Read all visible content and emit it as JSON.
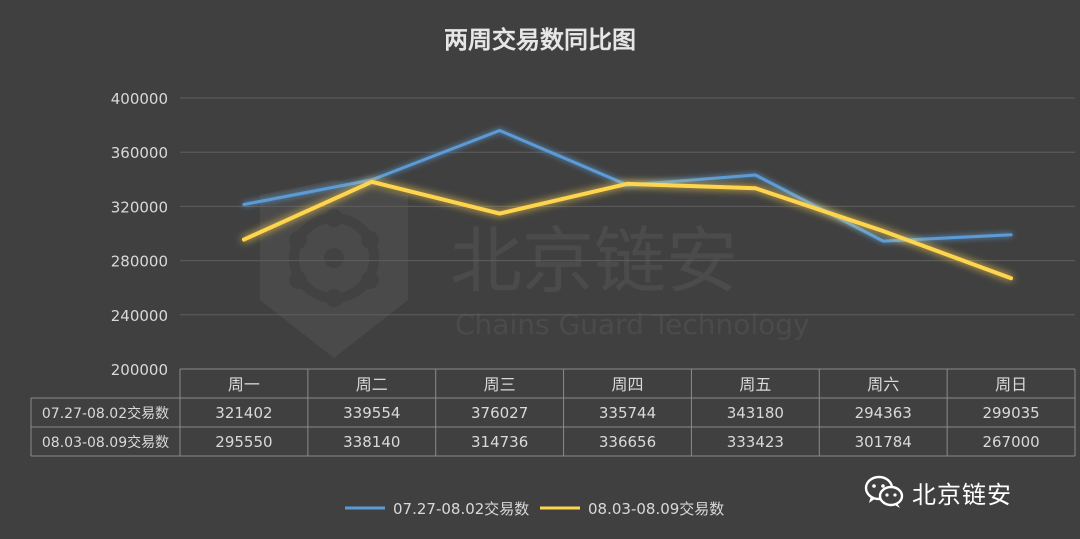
{
  "chart_data": {
    "type": "line",
    "title": "两周交易数同比图",
    "categories": [
      "周一",
      "周二",
      "周三",
      "周四",
      "周五",
      "周六",
      "周日"
    ],
    "ylim": [
      200000,
      400000
    ],
    "yticks": [
      "400000",
      "360000",
      "320000",
      "280000",
      "240000",
      "200000"
    ],
    "grid": true,
    "legend_position": "bottom",
    "series": [
      {
        "name": "07.27-08.02交易数",
        "color": "#5b9bd5",
        "values": [
          321402,
          339554,
          376027,
          335744,
          343180,
          294363,
          299035
        ]
      },
      {
        "name": "08.03-08.09交易数",
        "color": "#ffd54f",
        "values": [
          295550,
          338140,
          314736,
          336656,
          333423,
          301784,
          267000
        ]
      }
    ],
    "table": {
      "rows": [
        {
          "label": "07.27-08.02交易数",
          "cells": [
            "321402",
            "339554",
            "376027",
            "335744",
            "343180",
            "294363",
            "299035"
          ]
        },
        {
          "label": "08.03-08.09交易数",
          "cells": [
            "295550",
            "338140",
            "314736",
            "336656",
            "333423",
            "301784",
            "267000"
          ]
        }
      ]
    }
  },
  "watermark": {
    "chinese": "北京链安",
    "english": "Chains Guard Technology"
  },
  "brand": {
    "label": "北京链安"
  },
  "colors": {
    "background": "#404040",
    "grid": "#5e5e5e",
    "text": "#d9d9d9"
  }
}
